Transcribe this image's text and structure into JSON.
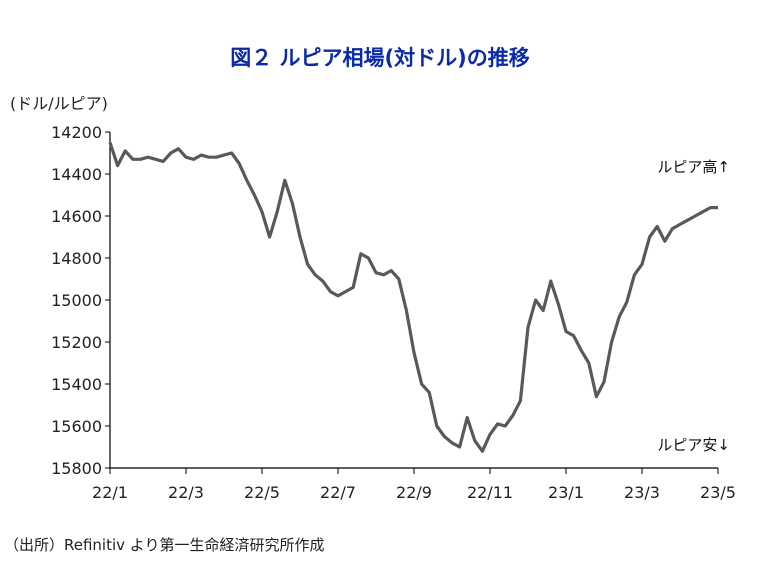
{
  "chart_data": {
    "type": "line",
    "title": "図２ ルピア相場(対ドル)の推移",
    "ylabel": "(ドル/ルピア)",
    "ylim": [
      15800,
      14200
    ],
    "y_inverted": true,
    "yticks": [
      14200,
      14400,
      14600,
      14800,
      15000,
      15200,
      15400,
      15600,
      15800
    ],
    "xticks": [
      "22/1",
      "22/3",
      "22/5",
      "22/7",
      "22/9",
      "22/11",
      "23/1",
      "23/3",
      "23/5"
    ],
    "x_range": [
      0,
      16
    ],
    "annotations": [
      "ルピア高↑",
      "ルピア安↓"
    ],
    "source": "（出所）Refinitiv より第一生命経済研究所作成",
    "grid": false,
    "series": [
      {
        "color": "#595959",
        "x": [
          0.0,
          0.2,
          0.4,
          0.6,
          0.8,
          1.0,
          1.2,
          1.4,
          1.6,
          1.8,
          2.0,
          2.2,
          2.4,
          2.6,
          2.8,
          3.0,
          3.2,
          3.4,
          3.6,
          3.8,
          4.0,
          4.2,
          4.4,
          4.6,
          4.8,
          5.0,
          5.2,
          5.4,
          5.6,
          5.8,
          6.0,
          6.2,
          6.4,
          6.6,
          6.8,
          7.0,
          7.2,
          7.4,
          7.6,
          7.8,
          8.0,
          8.2,
          8.4,
          8.6,
          8.8,
          9.0,
          9.2,
          9.4,
          9.6,
          9.8,
          10.0,
          10.2,
          10.4,
          10.6,
          10.8,
          11.0,
          11.2,
          11.4,
          11.6,
          11.8,
          12.0,
          12.2,
          12.4,
          12.6,
          12.8,
          13.0,
          13.2,
          13.4,
          13.6,
          13.8,
          14.0,
          14.2,
          14.4,
          14.6,
          14.8,
          15.0,
          15.2,
          15.4,
          15.6,
          15.8,
          16.0
        ],
        "values": [
          14250,
          14360,
          14290,
          14330,
          14330,
          14320,
          14330,
          14340,
          14300,
          14280,
          14320,
          14330,
          14310,
          14320,
          14320,
          14310,
          14300,
          14350,
          14430,
          14500,
          14580,
          14700,
          14580,
          14430,
          14540,
          14700,
          14830,
          14880,
          14910,
          14960,
          14980,
          14960,
          14940,
          14780,
          14800,
          14870,
          14880,
          14860,
          14900,
          15050,
          15250,
          15400,
          15440,
          15600,
          15650,
          15680,
          15700,
          15560,
          15670,
          15720,
          15640,
          15590,
          15600,
          15550,
          15480,
          15130,
          15000,
          15050,
          14910,
          15020,
          15150,
          15170,
          15240,
          15300,
          15460,
          15390,
          15200,
          15080,
          15010,
          14880,
          14830,
          14700,
          14650,
          14720,
          14660,
          14640,
          14620,
          14600,
          14580,
          14560,
          14560
        ]
      }
    ]
  }
}
